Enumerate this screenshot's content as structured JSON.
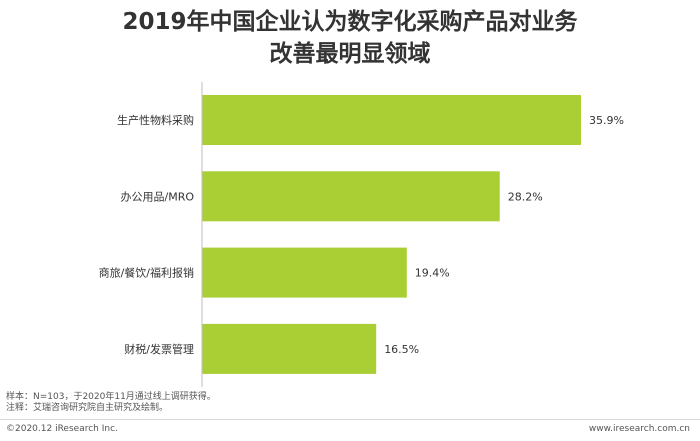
{
  "chart_data": {
    "type": "bar",
    "orientation": "horizontal",
    "title_line1": "2019年中国企业认为数字化采购产品对业务",
    "title_line2": "改善最明显领域",
    "categories": [
      "生产性物料采购",
      "办公用品/MRO",
      "商旅/餐饮/福利报销",
      "财税/发票管理"
    ],
    "values": [
      35.9,
      28.2,
      19.4,
      16.5
    ],
    "value_labels": [
      "35.9%",
      "28.2%",
      "19.4%",
      "16.5%"
    ],
    "xlim": [
      0,
      40
    ],
    "grid": false,
    "bar_color": "#a9cf35"
  },
  "notes": {
    "sample": "样本：N=103，于2020年11月通过线上调研获得。",
    "source": "注释：艾瑞咨询研究院自主研究及绘制。"
  },
  "footer": {
    "copyright": "©2020.12 iResearch Inc.",
    "website": "www.iresearch.com.cn"
  }
}
